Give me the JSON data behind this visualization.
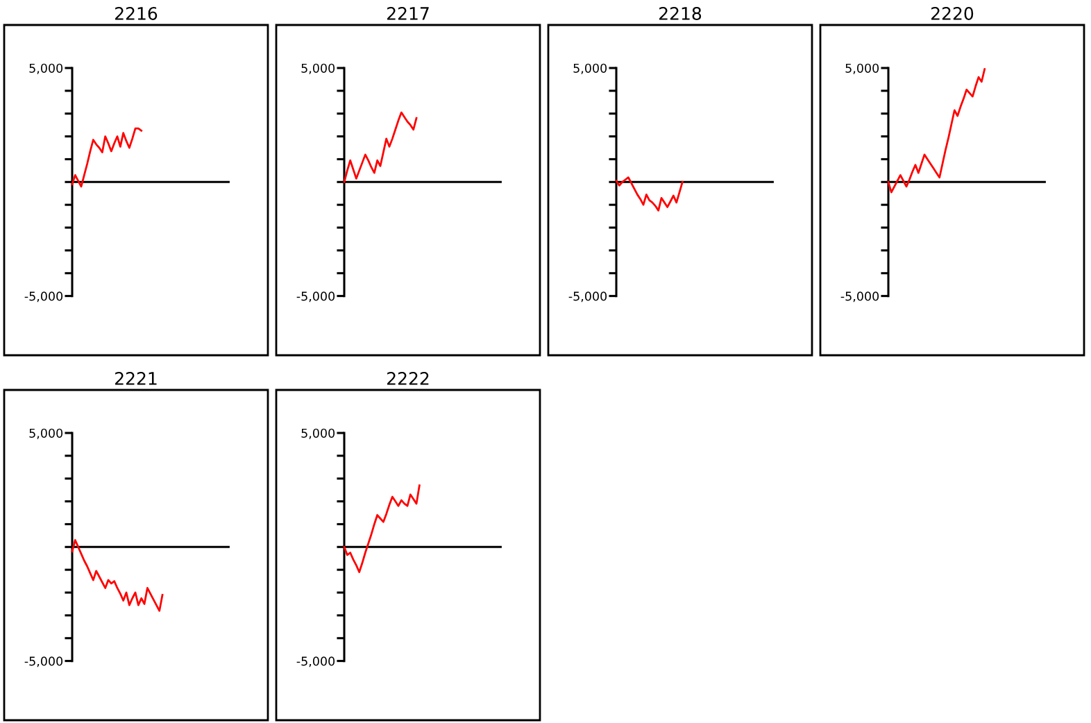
{
  "chart_data": [
    {
      "type": "line",
      "title": "2216",
      "categories": [
        null,
        null,
        null,
        null,
        null,
        null,
        null,
        null,
        null,
        null,
        null,
        null,
        null,
        null,
        null,
        null,
        null,
        null,
        null,
        null,
        null,
        null,
        null,
        null,
        null,
        null,
        null,
        null,
        null,
        null,
        null,
        null,
        null,
        null,
        null,
        null,
        null,
        null,
        null,
        null,
        null,
        null,
        null,
        null,
        null,
        null,
        null,
        null,
        null,
        null,
        null,
        null,
        null
      ],
      "series": [
        {
          "color": "#ff0000",
          "values": [
            -100,
            300,
            50,
            -200,
            300,
            800,
            1350,
            1850,
            1650,
            1500,
            1300,
            2000,
            1700,
            1350,
            1700,
            2000,
            1550,
            2150,
            1800,
            1500,
            1900,
            2350,
            2350,
            2250,
            null,
            null,
            null,
            null,
            null,
            null,
            null,
            null,
            null,
            null,
            null,
            null,
            null,
            null,
            null,
            null,
            null,
            null,
            null,
            null,
            null,
            null,
            null,
            null,
            null,
            null,
            null,
            null,
            null
          ]
        }
      ],
      "ylim": [
        -5000,
        5000
      ],
      "yticks": [
        {
          "value": -5000,
          "label": "-5,000"
        },
        {
          "value": -4000,
          "label": null
        },
        {
          "value": -3000,
          "label": null
        },
        {
          "value": -2000,
          "label": null
        },
        {
          "value": -1000,
          "label": null
        },
        {
          "value": 0,
          "label": null
        },
        {
          "value": 1000,
          "label": null
        },
        {
          "value": 2000,
          "label": null
        },
        {
          "value": 3000,
          "label": null
        },
        {
          "value": 4000,
          "label": null
        },
        {
          "value": 5000,
          "label": "5,000"
        }
      ],
      "tick_labels": "y"
    },
    {
      "type": "line",
      "title": "2217",
      "categories": [
        null,
        null,
        null,
        null,
        null,
        null,
        null,
        null,
        null,
        null,
        null,
        null,
        null,
        null,
        null,
        null,
        null,
        null,
        null,
        null,
        null,
        null,
        null,
        null,
        null,
        null,
        null,
        null,
        null,
        null,
        null,
        null,
        null,
        null,
        null,
        null,
        null,
        null,
        null,
        null,
        null,
        null,
        null,
        null,
        null,
        null,
        null,
        null,
        null,
        null,
        null,
        null,
        null
      ],
      "series": [
        {
          "color": "#ff0000",
          "values": [
            0,
            500,
            950,
            550,
            150,
            500,
            850,
            1200,
            950,
            650,
            400,
            950,
            700,
            1300,
            1900,
            1550,
            1900,
            2300,
            2700,
            3050,
            2850,
            2650,
            2500,
            2300,
            2800,
            null,
            null,
            null,
            null,
            null,
            null,
            null,
            null,
            null,
            null,
            null,
            null,
            null,
            null,
            null,
            null,
            null,
            null,
            null,
            null,
            null,
            null,
            null,
            null,
            null,
            null,
            null,
            null
          ]
        }
      ],
      "ylim": [
        -5000,
        5000
      ],
      "yticks": [
        {
          "value": -5000,
          "label": "-5,000"
        },
        {
          "value": -4000,
          "label": null
        },
        {
          "value": -3000,
          "label": null
        },
        {
          "value": -2000,
          "label": null
        },
        {
          "value": -1000,
          "label": null
        },
        {
          "value": 0,
          "label": null
        },
        {
          "value": 1000,
          "label": null
        },
        {
          "value": 2000,
          "label": null
        },
        {
          "value": 3000,
          "label": null
        },
        {
          "value": 4000,
          "label": null
        },
        {
          "value": 5000,
          "label": "5,000"
        }
      ],
      "tick_labels": "y"
    },
    {
      "type": "line",
      "title": "2218",
      "categories": [
        null,
        null,
        null,
        null,
        null,
        null,
        null,
        null,
        null,
        null,
        null,
        null,
        null,
        null,
        null,
        null,
        null,
        null,
        null,
        null,
        null,
        null,
        null,
        null,
        null,
        null,
        null,
        null,
        null,
        null,
        null,
        null,
        null,
        null,
        null,
        null,
        null,
        null,
        null,
        null,
        null,
        null,
        null,
        null,
        null,
        null,
        null,
        null,
        null,
        null,
        null,
        null,
        null
      ],
      "series": [
        {
          "color": "#ff0000",
          "values": [
            50,
            -150,
            0,
            100,
            200,
            -50,
            -300,
            -550,
            -750,
            -1000,
            -550,
            -800,
            -900,
            -1050,
            -1250,
            -700,
            -900,
            -1100,
            -850,
            -600,
            -900,
            -450,
            0,
            null,
            null,
            null,
            null,
            null,
            null,
            null,
            null,
            null,
            null,
            null,
            null,
            null,
            null,
            null,
            null,
            null,
            null,
            null,
            null,
            null,
            null,
            null,
            null,
            null,
            null,
            null,
            null,
            null,
            null
          ]
        }
      ],
      "ylim": [
        -5000,
        5000
      ],
      "yticks": [
        {
          "value": -5000,
          "label": "-5,000"
        },
        {
          "value": -4000,
          "label": null
        },
        {
          "value": -3000,
          "label": null
        },
        {
          "value": -2000,
          "label": null
        },
        {
          "value": -1000,
          "label": null
        },
        {
          "value": 0,
          "label": null
        },
        {
          "value": 1000,
          "label": null
        },
        {
          "value": 2000,
          "label": null
        },
        {
          "value": 3000,
          "label": null
        },
        {
          "value": 4000,
          "label": null
        },
        {
          "value": 5000,
          "label": "5,000"
        }
      ],
      "tick_labels": "y"
    },
    {
      "type": "line",
      "title": "2220",
      "categories": [
        null,
        null,
        null,
        null,
        null,
        null,
        null,
        null,
        null,
        null,
        null,
        null,
        null,
        null,
        null,
        null,
        null,
        null,
        null,
        null,
        null,
        null,
        null,
        null,
        null,
        null,
        null,
        null,
        null,
        null,
        null,
        null,
        null,
        null,
        null,
        null,
        null,
        null,
        null,
        null,
        null,
        null,
        null,
        null,
        null,
        null,
        null,
        null,
        null,
        null,
        null,
        null,
        null
      ],
      "series": [
        {
          "color": "#ff0000",
          "values": [
            0,
            -450,
            -200,
            50,
            300,
            50,
            -200,
            100,
            450,
            750,
            400,
            800,
            1200,
            1000,
            800,
            600,
            400,
            200,
            800,
            1400,
            1950,
            2550,
            3150,
            2900,
            3300,
            3650,
            4050,
            3900,
            3750,
            4200,
            4600,
            4400,
            4950,
            null,
            null,
            null,
            null,
            null,
            null,
            null,
            null,
            null,
            null,
            null,
            null,
            null,
            null,
            null,
            null,
            null,
            null,
            null,
            null
          ]
        }
      ],
      "ylim": [
        -5000,
        5000
      ],
      "yticks": [
        {
          "value": -5000,
          "label": "-5,000"
        },
        {
          "value": -4000,
          "label": null
        },
        {
          "value": -3000,
          "label": null
        },
        {
          "value": -2000,
          "label": null
        },
        {
          "value": -1000,
          "label": null
        },
        {
          "value": 0,
          "label": null
        },
        {
          "value": 1000,
          "label": null
        },
        {
          "value": 2000,
          "label": null
        },
        {
          "value": 3000,
          "label": null
        },
        {
          "value": 4000,
          "label": null
        },
        {
          "value": 5000,
          "label": "5,000"
        }
      ],
      "tick_labels": "y"
    },
    {
      "type": "line",
      "title": "2221",
      "categories": [
        null,
        null,
        null,
        null,
        null,
        null,
        null,
        null,
        null,
        null,
        null,
        null,
        null,
        null,
        null,
        null,
        null,
        null,
        null,
        null,
        null,
        null,
        null,
        null,
        null,
        null,
        null,
        null,
        null,
        null,
        null,
        null,
        null,
        null,
        null,
        null,
        null,
        null,
        null,
        null,
        null,
        null,
        null,
        null,
        null,
        null,
        null,
        null,
        null,
        null,
        null,
        null,
        null
      ],
      "series": [
        {
          "color": "#ff0000",
          "values": [
            -200,
            300,
            0,
            -300,
            -600,
            -850,
            -1150,
            -1450,
            -1050,
            -1300,
            -1550,
            -1800,
            -1450,
            -1600,
            -1500,
            -1800,
            -2050,
            -2350,
            -2000,
            -2550,
            -2250,
            -2000,
            -2550,
            -2250,
            -2500,
            -1800,
            -2050,
            -2300,
            -2550,
            -2800,
            -2100,
            null,
            null,
            null,
            null,
            null,
            null,
            null,
            null,
            null,
            null,
            null,
            null,
            null,
            null,
            null,
            null,
            null,
            null,
            null,
            null,
            null,
            null
          ]
        }
      ],
      "ylim": [
        -5000,
        5000
      ],
      "yticks": [
        {
          "value": -5000,
          "label": "-5,000"
        },
        {
          "value": -4000,
          "label": null
        },
        {
          "value": -3000,
          "label": null
        },
        {
          "value": -2000,
          "label": null
        },
        {
          "value": -1000,
          "label": null
        },
        {
          "value": 0,
          "label": null
        },
        {
          "value": 1000,
          "label": null
        },
        {
          "value": 2000,
          "label": null
        },
        {
          "value": 3000,
          "label": null
        },
        {
          "value": 4000,
          "label": null
        },
        {
          "value": 5000,
          "label": "5,000"
        }
      ],
      "tick_labels": "y"
    },
    {
      "type": "line",
      "title": "2222",
      "categories": [
        null,
        null,
        null,
        null,
        null,
        null,
        null,
        null,
        null,
        null,
        null,
        null,
        null,
        null,
        null,
        null,
        null,
        null,
        null,
        null,
        null,
        null,
        null,
        null,
        null,
        null,
        null,
        null,
        null,
        null,
        null,
        null,
        null,
        null,
        null,
        null,
        null,
        null,
        null,
        null,
        null,
        null,
        null,
        null,
        null,
        null,
        null,
        null,
        null,
        null,
        null,
        null,
        null
      ],
      "series": [
        {
          "color": "#ff0000",
          "values": [
            0,
            -350,
            -250,
            -550,
            -800,
            -1100,
            -700,
            -250,
            150,
            550,
            1000,
            1400,
            1250,
            1100,
            1450,
            1850,
            2200,
            2000,
            1800,
            2050,
            1900,
            1800,
            2300,
            2100,
            1900,
            2700,
            null,
            null,
            null,
            null,
            null,
            null,
            null,
            null,
            null,
            null,
            null,
            null,
            null,
            null,
            null,
            null,
            null,
            null,
            null,
            null,
            null,
            null,
            null,
            null,
            null,
            null,
            null
          ]
        }
      ],
      "ylim": [
        -5000,
        5000
      ],
      "yticks": [
        {
          "value": -5000,
          "label": "-5,000"
        },
        {
          "value": -4000,
          "label": null
        },
        {
          "value": -3000,
          "label": null
        },
        {
          "value": -2000,
          "label": null
        },
        {
          "value": -1000,
          "label": null
        },
        {
          "value": 0,
          "label": null
        },
        {
          "value": 1000,
          "label": null
        },
        {
          "value": 2000,
          "label": null
        },
        {
          "value": 3000,
          "label": null
        },
        {
          "value": 4000,
          "label": null
        },
        {
          "value": 5000,
          "label": "5,000"
        }
      ],
      "tick_labels": "y"
    }
  ]
}
